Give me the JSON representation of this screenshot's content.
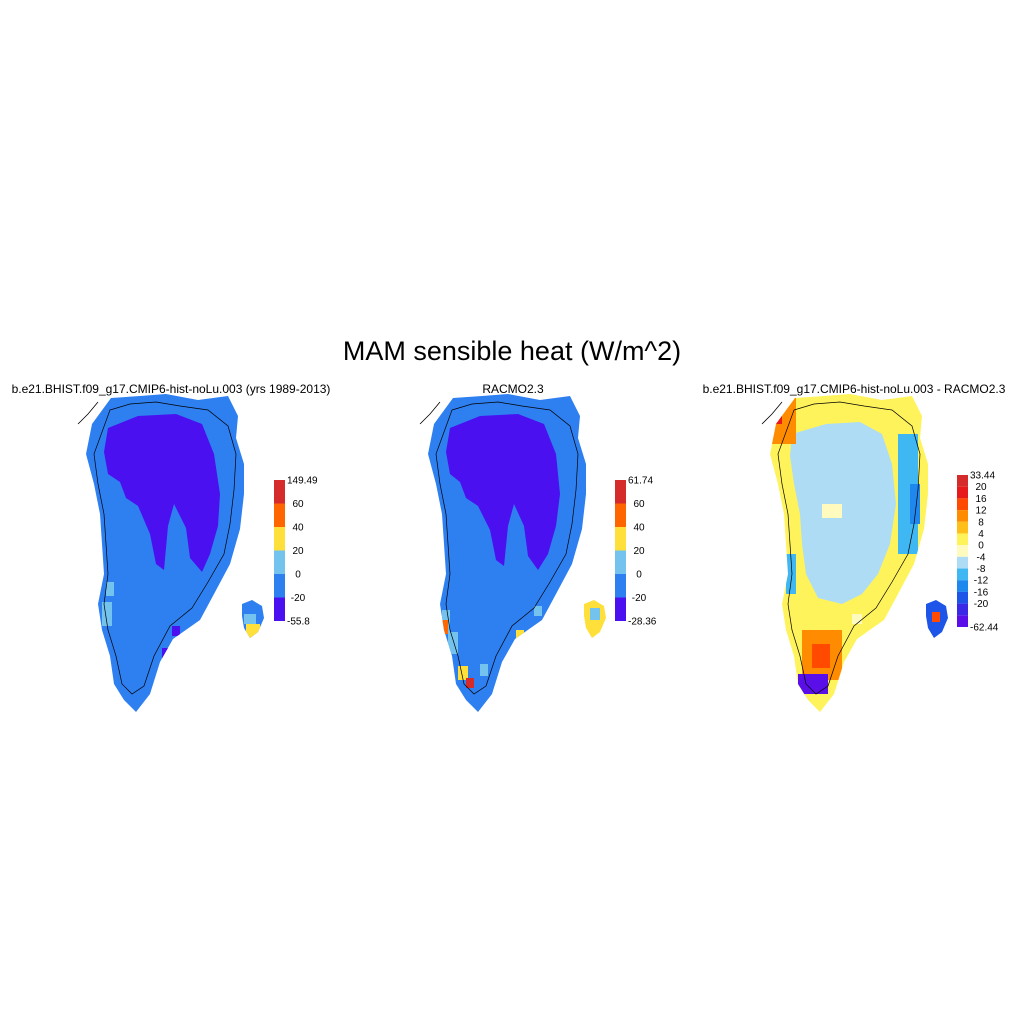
{
  "figure": {
    "title": "MAM sensible heat (W/m^2)"
  },
  "panels": [
    {
      "title": "b.e21.BHIST.f09_g17.CMIP6-hist-noLu.003 (yrs 1989-2013)",
      "colorbar": {
        "max_label": "149.49",
        "levels": [
          "60",
          "40",
          "20",
          "0",
          "-20"
        ],
        "min_label": "-55.8",
        "colors": [
          "#d62b2b",
          "#ff6600",
          "#ffe03a",
          "#73c3ee",
          "#2e7ff0",
          "#4a10f0"
        ]
      }
    },
    {
      "title": "RACMO2.3",
      "colorbar": {
        "max_label": "61.74",
        "levels": [
          "60",
          "40",
          "20",
          "0",
          "-20"
        ],
        "min_label": "-28.36",
        "colors": [
          "#d62b2b",
          "#ff6600",
          "#ffe03a",
          "#73c3ee",
          "#2e7ff0",
          "#4a10f0"
        ]
      }
    },
    {
      "title": "b.e21.BHIST.f09_g17.CMIP6-hist-noLu.003 - RACMO2.3",
      "colorbar": {
        "max_label": "33.44",
        "levels": [
          "20",
          "16",
          "12",
          "8",
          "4",
          "0",
          "-4",
          "-8",
          "-12",
          "-16",
          "-20"
        ],
        "min_label": "-62.44",
        "colors": [
          "#d62b2b",
          "#e8191b",
          "#ff4a00",
          "#ff8c00",
          "#ffbf1a",
          "#fff35c",
          "#fffbbe",
          "#addcf4",
          "#3fb7f3",
          "#1f88ee",
          "#1c55e8",
          "#3a2ae8",
          "#5a0fe8"
        ]
      }
    }
  ]
}
